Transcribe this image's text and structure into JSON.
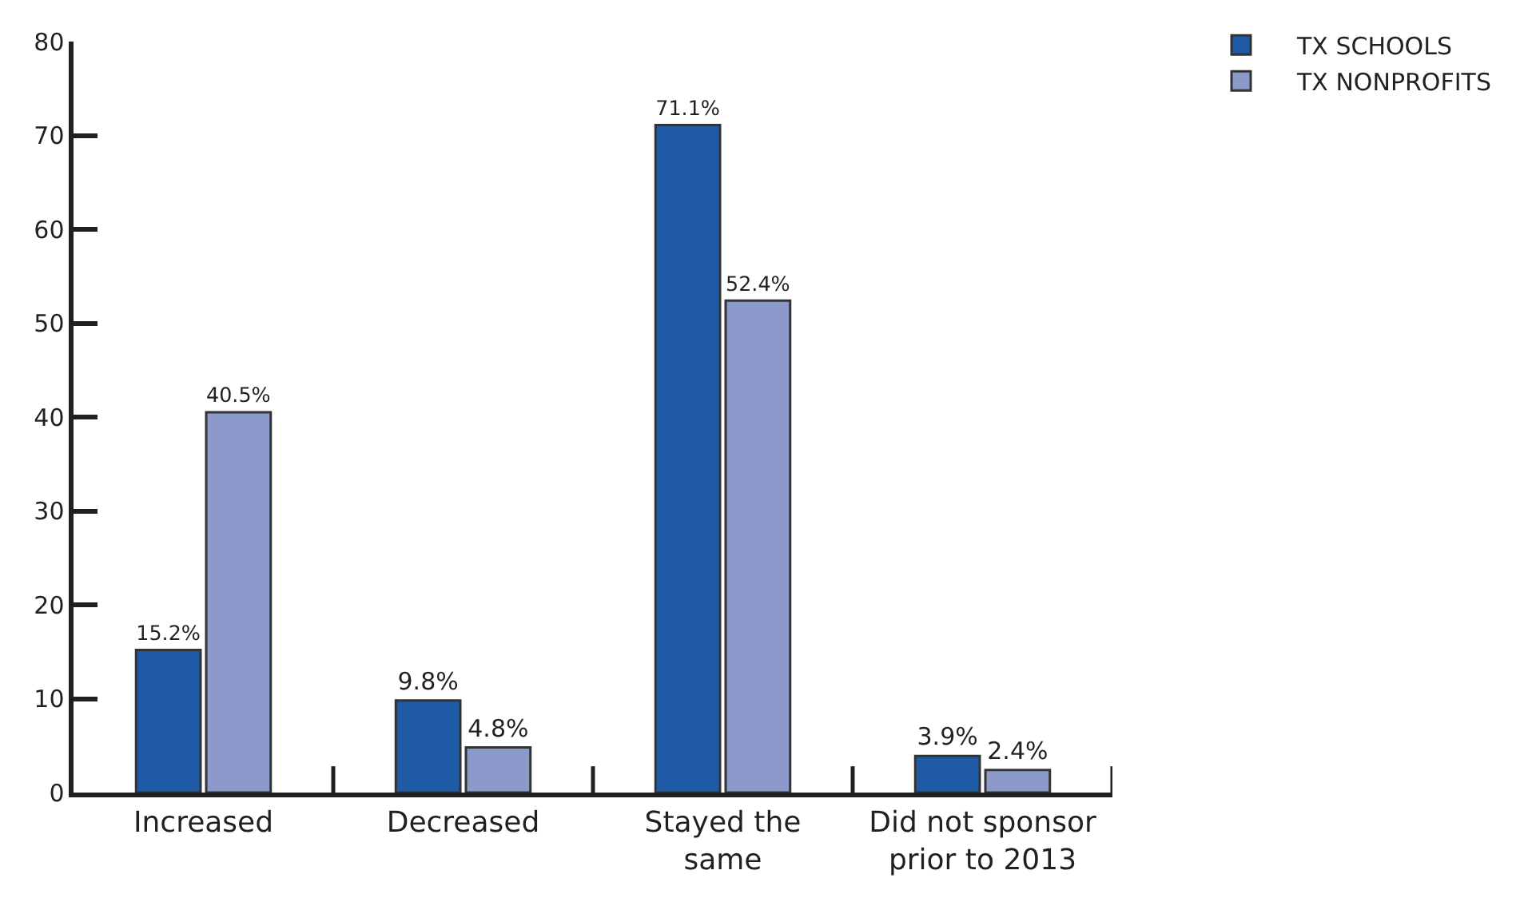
{
  "chart_data": {
    "type": "bar",
    "categories": [
      "Increased",
      "Decreased",
      "Stayed the same",
      "Did not sponsor prior to 2013"
    ],
    "series": [
      {
        "name": "TX SCHOOLS",
        "color": "#1f5aa6",
        "values": [
          15.2,
          9.8,
          71.1,
          3.9
        ],
        "value_labels": [
          "15.2%",
          "9.8%",
          "71.1%",
          "3.9%"
        ]
      },
      {
        "name": "TX NONPROFITS",
        "color": "#8b9acb",
        "values": [
          40.5,
          4.8,
          52.4,
          2.4
        ],
        "value_labels": [
          "40.5%",
          "4.8%",
          "52.4%",
          "2.4%"
        ]
      }
    ],
    "ylim": [
      0,
      80
    ],
    "yticks": [
      0,
      10,
      20,
      30,
      40,
      50,
      60,
      70,
      80
    ],
    "grid": false,
    "legend": "top right"
  }
}
